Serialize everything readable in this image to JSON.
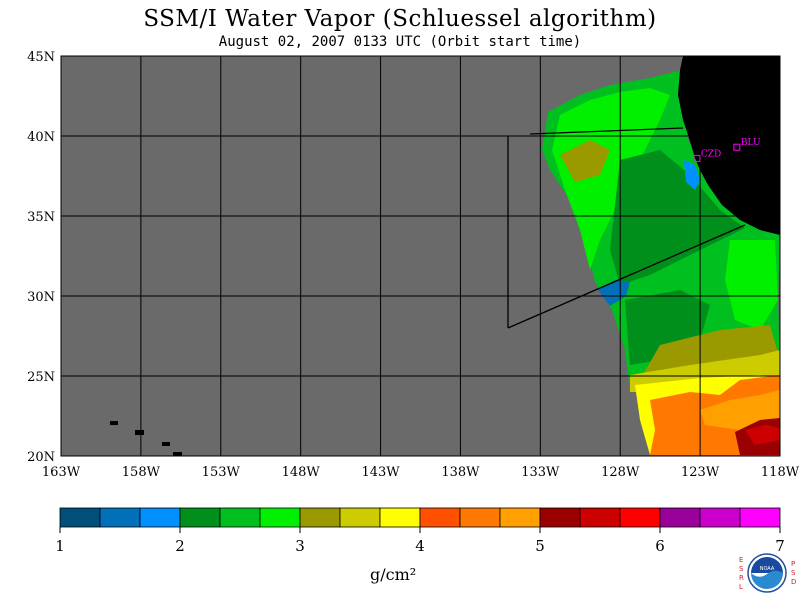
{
  "title": "SSM/I Water Vapor (Schluessel algorithm)",
  "subtitle": "August 02, 2007  0133 UTC  (Orbit start time)",
  "map": {
    "lat_labels": [
      "45N",
      "40N",
      "35N",
      "30N",
      "25N",
      "20N"
    ],
    "lon_labels": [
      "163W",
      "158W",
      "153W",
      "148W",
      "143W",
      "138W",
      "133W",
      "128W",
      "123W",
      "118W"
    ],
    "lat_range": [
      20,
      45
    ],
    "lon_range": [
      -163,
      -118
    ],
    "colors": {
      "no_data": "#6a6a6a",
      "land": "#000000",
      "station": "#ff00ff"
    },
    "stations": [
      {
        "label": "CZD",
        "lat": 38.6,
        "lon": -123.2
      },
      {
        "label": "BLU",
        "lat": 39.3,
        "lon": -120.7
      }
    ]
  },
  "colorbar": {
    "ticks": [
      "1",
      "2",
      "3",
      "4",
      "5",
      "6",
      "7"
    ],
    "min": 1,
    "max": 7,
    "colors": [
      "#004f7a",
      "#0070b8",
      "#0090ff",
      "#008f1a",
      "#00c020",
      "#00f000",
      "#9a9a00",
      "#cccc00",
      "#ffff00",
      "#ff5000",
      "#ff7800",
      "#ffa000",
      "#9a0000",
      "#cc0000",
      "#ff0000",
      "#9a009a",
      "#cc00cc",
      "#ff00ff"
    ],
    "units": "g/cm²"
  },
  "logo": {
    "name": "noaa-logo",
    "left_text": "ESRL",
    "right_text": "PSD",
    "center_text": "NOAA"
  }
}
